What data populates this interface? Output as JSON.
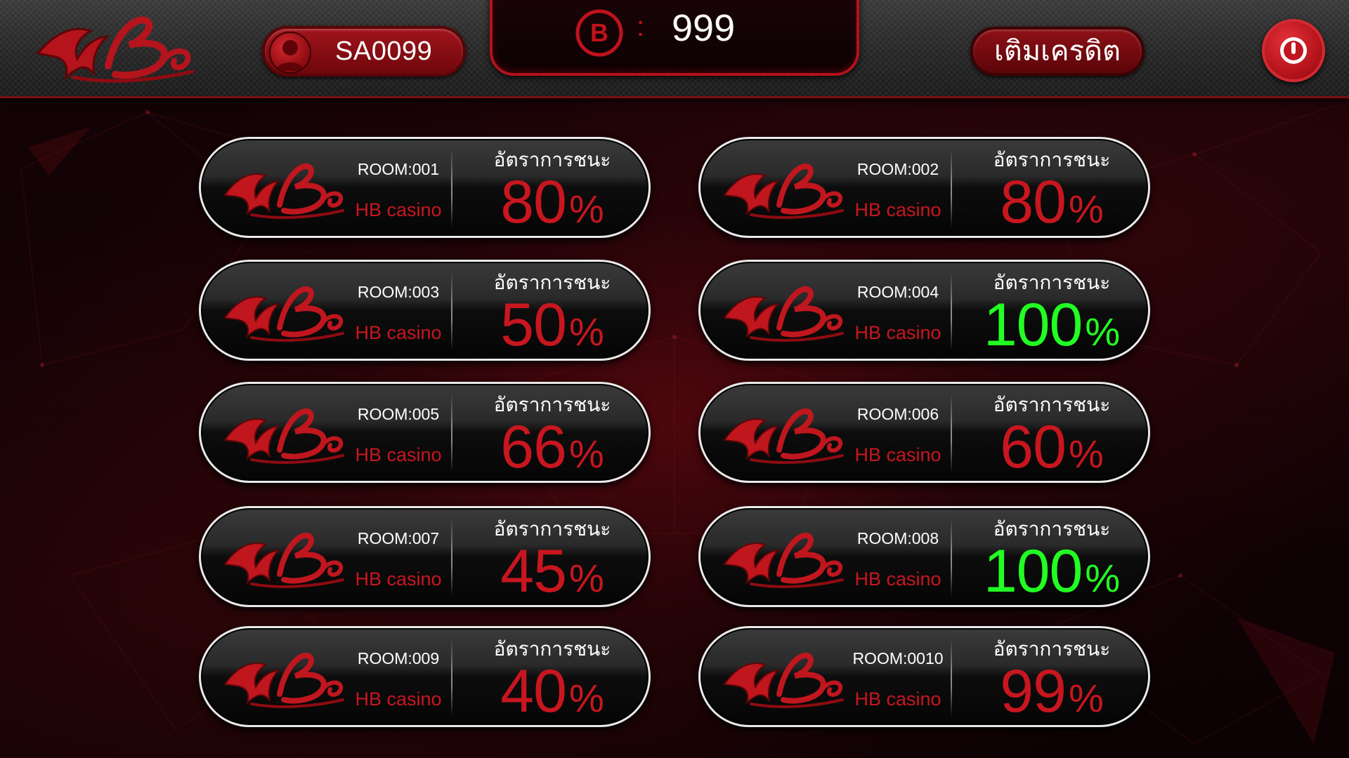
{
  "colors": {
    "accent_red": "#c8161f",
    "high_rate_green": "#22ff22",
    "header_bg": "#2a2a2a",
    "text_white": "#ffffff"
  },
  "header": {
    "logo_icon": "hb-script-logo",
    "user": {
      "icon": "user-avatar-icon",
      "id": "SA0099"
    },
    "balance": {
      "currency_symbol": "B",
      "separator": ":",
      "value": "999"
    },
    "topup_label": "เติมเครดิต",
    "power_icon": "power-icon"
  },
  "rooms": [
    {
      "number": "ROOM:001",
      "brand": "HB casino",
      "rate_label": "อัตราการชนะ",
      "rate": "80",
      "unit": "%",
      "highlight": false
    },
    {
      "number": "ROOM:002",
      "brand": "HB casino",
      "rate_label": "อัตราการชนะ",
      "rate": "80",
      "unit": "%",
      "highlight": false
    },
    {
      "number": "ROOM:003",
      "brand": "HB casino",
      "rate_label": "อัตราการชนะ",
      "rate": "50",
      "unit": "%",
      "highlight": false
    },
    {
      "number": "ROOM:004",
      "brand": "HB casino",
      "rate_label": "อัตราการชนะ",
      "rate": "100",
      "unit": "%",
      "highlight": true
    },
    {
      "number": "ROOM:005",
      "brand": "HB casino",
      "rate_label": "อัตราการชนะ",
      "rate": "66",
      "unit": "%",
      "highlight": false
    },
    {
      "number": "ROOM:006",
      "brand": "HB casino",
      "rate_label": "อัตราการชนะ",
      "rate": "60",
      "unit": "%",
      "highlight": false
    },
    {
      "number": "ROOM:007",
      "brand": "HB casino",
      "rate_label": "อัตราการชนะ",
      "rate": "45",
      "unit": "%",
      "highlight": false
    },
    {
      "number": "ROOM:008",
      "brand": "HB casino",
      "rate_label": "อัตราการชนะ",
      "rate": "100",
      "unit": "%",
      "highlight": true
    },
    {
      "number": "ROOM:009",
      "brand": "HB casino",
      "rate_label": "อัตราการชนะ",
      "rate": "40",
      "unit": "%",
      "highlight": false
    },
    {
      "number": "ROOM:0010",
      "brand": "HB casino",
      "rate_label": "อัตราการชนะ",
      "rate": "99",
      "unit": "%",
      "highlight": false
    }
  ]
}
